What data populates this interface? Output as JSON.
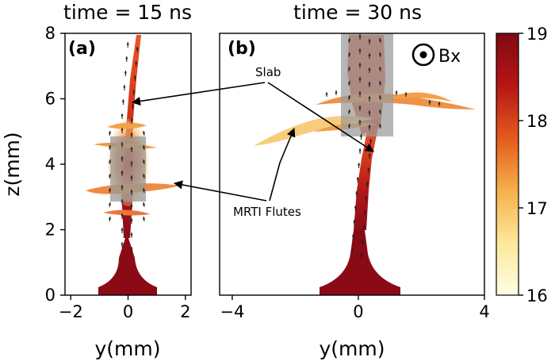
{
  "chart_data": [
    {
      "type": "heatmap",
      "panel_label": "(a)",
      "title": "time = 15 ns",
      "xlabel": "y(mm)",
      "ylabel": "z(mm)",
      "xlim": [
        -2.2,
        2.2
      ],
      "ylim": [
        0,
        8
      ],
      "xticks": [
        -2,
        0,
        2
      ],
      "xtick_labels": [
        "−2",
        "0",
        "2"
      ],
      "yticks": [
        0,
        2,
        4,
        6,
        8
      ],
      "ytick_labels": [
        "0",
        "2",
        "4",
        "6",
        "8"
      ],
      "slab_region": {
        "y": [
          -0.55,
          0.45
        ],
        "z": [
          2.95,
          4.85
        ]
      }
    },
    {
      "type": "heatmap",
      "panel_label": "(b)",
      "title": "time = 30 ns",
      "xlabel": "y(mm)",
      "xlim": [
        -4.4,
        4.0
      ],
      "ylim": [
        0,
        8
      ],
      "xticks": [
        -4,
        0,
        4
      ],
      "xtick_labels": [
        "−4",
        "0",
        "4"
      ],
      "slab_region": {
        "y": [
          -0.45,
          1.15
        ],
        "z": [
          4.85,
          8
        ]
      },
      "field_legend": "Bx"
    }
  ],
  "colorbar": {
    "min": 16,
    "max": 19,
    "ticks": [
      16,
      17,
      18,
      19
    ],
    "tick_labels": [
      "16",
      "17",
      "18",
      "19"
    ],
    "colors": [
      "#fffde6",
      "#fde89a",
      "#f6b04a",
      "#e55a1c",
      "#b71515",
      "#7f0a14"
    ]
  },
  "annotations": {
    "slab": "Slab",
    "mrti": "MRTI Flutes"
  }
}
